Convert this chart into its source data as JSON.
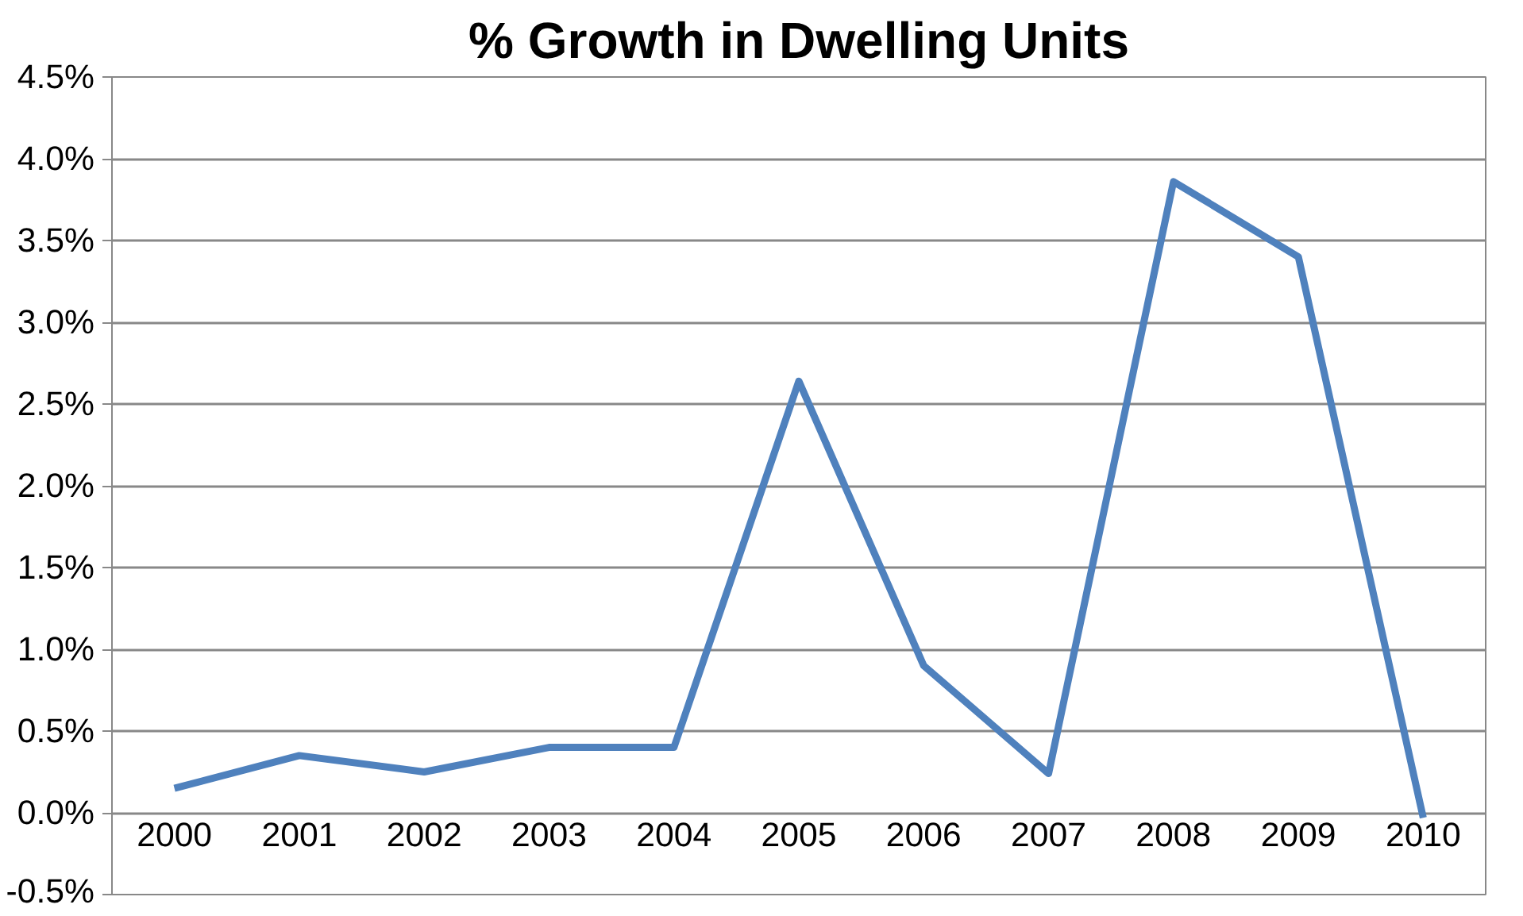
{
  "chart_data": {
    "type": "line",
    "title": "% Growth in Dwelling Units",
    "categories": [
      "2000",
      "2001",
      "2002",
      "2003",
      "2004",
      "2005",
      "2006",
      "2007",
      "2008",
      "2009",
      "2010"
    ],
    "series": [
      {
        "color": "#4f81bd",
        "values": [
          0.15,
          0.35,
          0.25,
          0.4,
          0.4,
          2.64,
          0.9,
          0.24,
          3.86,
          3.4,
          -0.03
        ]
      }
    ],
    "ylim": [
      -0.5,
      4.5
    ],
    "yticks": [
      {
        "value": -0.5,
        "label": "-0.5%"
      },
      {
        "value": 0,
        "label": "0.0%"
      },
      {
        "value": 0.5,
        "label": "0.5%"
      },
      {
        "value": 1,
        "label": "1.0%"
      },
      {
        "value": 1.5,
        "label": "1.5%"
      },
      {
        "value": 2,
        "label": "2.0%"
      },
      {
        "value": 2.5,
        "label": "2.5%"
      },
      {
        "value": 3,
        "label": "3.0%"
      },
      {
        "value": 3.5,
        "label": "3.5%"
      },
      {
        "value": 4,
        "label": "4.0%"
      },
      {
        "value": 4.5,
        "label": "4.5%"
      }
    ],
    "grid": "y",
    "marker": "none",
    "line_style": "solid"
  }
}
